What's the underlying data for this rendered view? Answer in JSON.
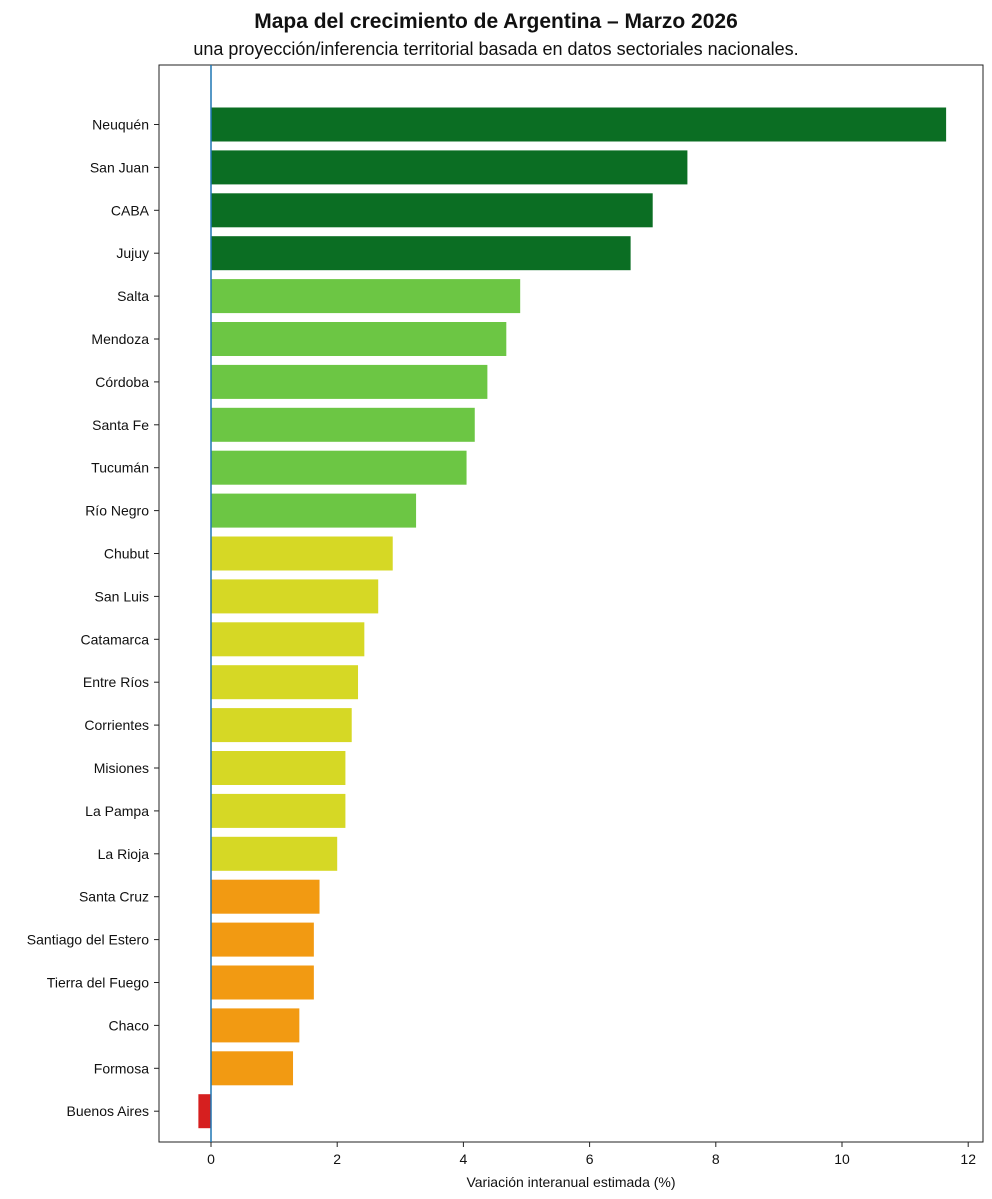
{
  "chart_data": {
    "type": "bar",
    "orientation": "horizontal",
    "title": "Mapa del crecimiento de Argentina – Marzo 2026",
    "subtitle": "una proyección/inferencia territorial basada en datos sectoriales nacionales.",
    "xlabel": "Variación interanual estimada (%)",
    "ylabel": "",
    "xlim": [
      -0.8,
      12.3
    ],
    "xticks": [
      0,
      2,
      4,
      6,
      8,
      10,
      12
    ],
    "grid": false,
    "reference_line": 0,
    "categories": [
      "Neuquén",
      "San Juan",
      "CABA",
      "Jujuy",
      "Salta",
      "Mendoza",
      "Córdoba",
      "Santa Fe",
      "Tucumán",
      "Río Negro",
      "Chubut",
      "San Luis",
      "Catamarca",
      "Entre Ríos",
      "Corrientes",
      "Misiones",
      "La Pampa",
      "La Rioja",
      "Santa Cruz",
      "Santiago del Estero",
      "Tierra del Fuego",
      "Chaco",
      "Formosa",
      "Buenos Aires"
    ],
    "values": [
      11.65,
      7.55,
      7.0,
      6.65,
      4.9,
      4.68,
      4.38,
      4.18,
      4.05,
      3.25,
      2.88,
      2.65,
      2.43,
      2.33,
      2.23,
      2.13,
      2.13,
      2.0,
      1.72,
      1.63,
      1.63,
      1.4,
      1.3,
      -0.2
    ],
    "colors": [
      "#0b6e23",
      "#0b6e23",
      "#0b6e23",
      "#0b6e23",
      "#6cc644",
      "#6cc644",
      "#6cc644",
      "#6cc644",
      "#6cc644",
      "#6cc644",
      "#d6d825",
      "#d6d825",
      "#d6d825",
      "#d6d825",
      "#d6d825",
      "#d6d825",
      "#d6d825",
      "#d6d825",
      "#f29a12",
      "#f29a12",
      "#f29a12",
      "#f29a12",
      "#f29a12",
      "#d61f1f"
    ],
    "reference_line_color": "#1f77b4"
  }
}
